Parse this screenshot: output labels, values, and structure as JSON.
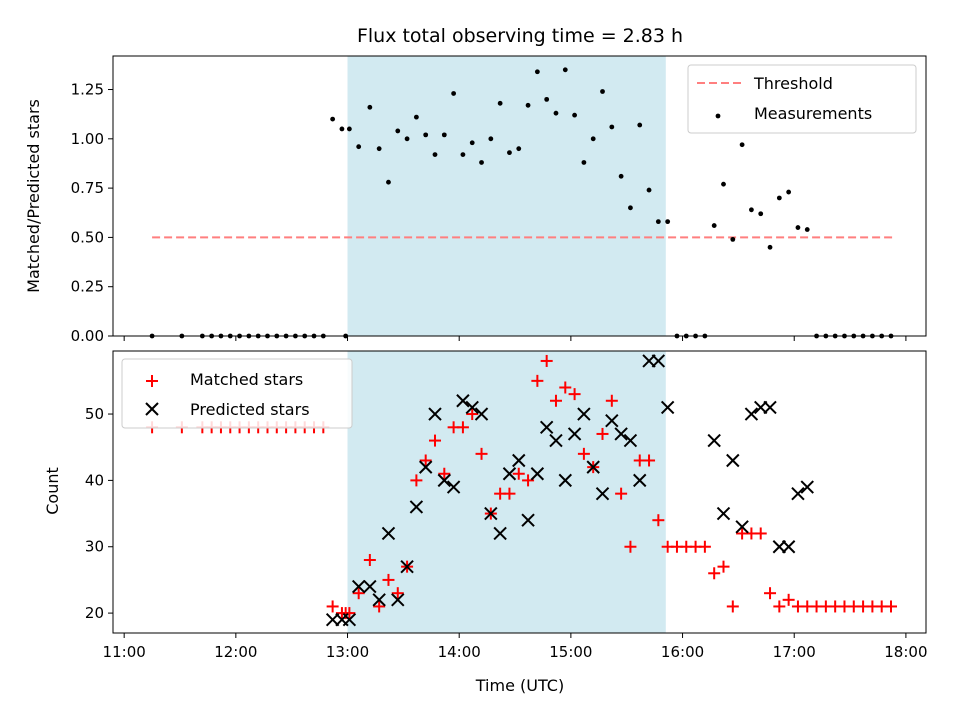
{
  "chart_data": [
    {
      "type": "scatter",
      "title": "Flux total observing time = 2.83 h",
      "xlabel": "",
      "ylabel": "Matched/Predicted stars",
      "ylim": [
        0,
        1.42
      ],
      "yticks": [
        "0.00",
        "0.25",
        "0.50",
        "0.75",
        "1.00",
        "1.25"
      ],
      "shaded_span": {
        "from": "13:00",
        "to": "15:51",
        "color": "#add8e6"
      },
      "legend": {
        "position": "top-right",
        "entries": [
          "Threshold",
          "Measurements"
        ]
      },
      "series": [
        {
          "name": "Threshold",
          "kind": "dashed-line",
          "color": "#ff7f7f",
          "points": [
            [
              "11:15",
              0.5
            ],
            [
              "17:53",
              0.5
            ]
          ]
        },
        {
          "name": "Measurements",
          "kind": "dot",
          "color": "#000000",
          "points": [
            [
              "11:15",
              0.0
            ],
            [
              "11:31",
              0.0
            ],
            [
              "11:42",
              0.0
            ],
            [
              "11:47",
              0.0
            ],
            [
              "11:52",
              0.0
            ],
            [
              "11:57",
              0.0
            ],
            [
              "12:02",
              0.0
            ],
            [
              "12:07",
              0.0
            ],
            [
              "12:12",
              0.0
            ],
            [
              "12:17",
              0.0
            ],
            [
              "12:22",
              0.0
            ],
            [
              "12:27",
              0.0
            ],
            [
              "12:32",
              0.0
            ],
            [
              "12:37",
              0.0
            ],
            [
              "12:42",
              0.0
            ],
            [
              "12:47",
              0.0
            ],
            [
              "12:52",
              1.1
            ],
            [
              "12:57",
              1.05
            ],
            [
              "12:59",
              0.0
            ],
            [
              "13:01",
              1.05
            ],
            [
              "13:06",
              0.96
            ],
            [
              "13:12",
              1.16
            ],
            [
              "13:17",
              0.95
            ],
            [
              "13:22",
              0.78
            ],
            [
              "13:27",
              1.04
            ],
            [
              "13:32",
              1.0
            ],
            [
              "13:37",
              1.11
            ],
            [
              "13:42",
              1.02
            ],
            [
              "13:47",
              0.92
            ],
            [
              "13:52",
              1.02
            ],
            [
              "13:57",
              1.23
            ],
            [
              "14:02",
              0.92
            ],
            [
              "14:07",
              0.98
            ],
            [
              "14:12",
              0.88
            ],
            [
              "14:17",
              1.0
            ],
            [
              "14:22",
              1.18
            ],
            [
              "14:27",
              0.93
            ],
            [
              "14:32",
              0.95
            ],
            [
              "14:37",
              1.17
            ],
            [
              "14:42",
              1.34
            ],
            [
              "14:47",
              1.2
            ],
            [
              "14:52",
              1.13
            ],
            [
              "14:57",
              1.35
            ],
            [
              "15:02",
              1.12
            ],
            [
              "15:07",
              0.88
            ],
            [
              "15:12",
              1.0
            ],
            [
              "15:17",
              1.24
            ],
            [
              "15:22",
              1.06
            ],
            [
              "15:27",
              0.81
            ],
            [
              "15:32",
              0.65
            ],
            [
              "15:37",
              1.07
            ],
            [
              "15:42",
              0.74
            ],
            [
              "15:47",
              0.58
            ],
            [
              "15:52",
              0.58
            ],
            [
              "15:57",
              0.0
            ],
            [
              "16:02",
              0.0
            ],
            [
              "16:07",
              0.0
            ],
            [
              "16:12",
              0.0
            ],
            [
              "16:17",
              0.56
            ],
            [
              "16:22",
              0.77
            ],
            [
              "16:27",
              0.49
            ],
            [
              "16:32",
              0.97
            ],
            [
              "16:37",
              0.64
            ],
            [
              "16:42",
              0.62
            ],
            [
              "16:47",
              0.45
            ],
            [
              "16:52",
              0.7
            ],
            [
              "16:57",
              0.73
            ],
            [
              "17:02",
              0.55
            ],
            [
              "17:07",
              0.54
            ],
            [
              "17:12",
              0.0
            ],
            [
              "17:17",
              0.0
            ],
            [
              "17:22",
              0.0
            ],
            [
              "17:27",
              0.0
            ],
            [
              "17:32",
              0.0
            ],
            [
              "17:37",
              0.0
            ],
            [
              "17:42",
              0.0
            ],
            [
              "17:47",
              0.0
            ],
            [
              "17:52",
              0.0
            ]
          ]
        }
      ]
    },
    {
      "type": "scatter",
      "title": "",
      "xlabel": "Time (UTC)",
      "ylabel": "Count",
      "ylim": [
        17,
        59.5
      ],
      "yticks": [
        "20",
        "30",
        "40",
        "50"
      ],
      "xticks": [
        "11:00",
        "12:00",
        "13:00",
        "14:00",
        "15:00",
        "16:00",
        "17:00",
        "18:00"
      ],
      "shaded_span": {
        "from": "13:00",
        "to": "15:51",
        "color": "#add8e6"
      },
      "legend": {
        "position": "top-left",
        "entries": [
          "Matched stars",
          "Predicted stars"
        ]
      },
      "series": [
        {
          "name": "Matched stars",
          "kind": "plus",
          "color": "#ff0000",
          "points": [
            [
              "11:15",
              48
            ],
            [
              "11:31",
              48
            ],
            [
              "11:42",
              48
            ],
            [
              "11:47",
              48
            ],
            [
              "11:52",
              48
            ],
            [
              "11:57",
              48
            ],
            [
              "12:02",
              48
            ],
            [
              "12:07",
              48
            ],
            [
              "12:12",
              48
            ],
            [
              "12:17",
              48
            ],
            [
              "12:22",
              48
            ],
            [
              "12:27",
              48
            ],
            [
              "12:32",
              48
            ],
            [
              "12:37",
              48
            ],
            [
              "12:42",
              48
            ],
            [
              "12:47",
              48
            ],
            [
              "12:52",
              21
            ],
            [
              "12:57",
              20
            ],
            [
              "12:59",
              20
            ],
            [
              "13:01",
              20
            ],
            [
              "13:06",
              23
            ],
            [
              "13:12",
              28
            ],
            [
              "13:17",
              21
            ],
            [
              "13:22",
              25
            ],
            [
              "13:27",
              23
            ],
            [
              "13:32",
              27
            ],
            [
              "13:37",
              40
            ],
            [
              "13:42",
              43
            ],
            [
              "13:47",
              46
            ],
            [
              "13:52",
              41
            ],
            [
              "13:57",
              48
            ],
            [
              "14:02",
              48
            ],
            [
              "14:07",
              50
            ],
            [
              "14:12",
              44
            ],
            [
              "14:17",
              35
            ],
            [
              "14:22",
              38
            ],
            [
              "14:27",
              38
            ],
            [
              "14:32",
              41
            ],
            [
              "14:37",
              40
            ],
            [
              "14:42",
              55
            ],
            [
              "14:47",
              58
            ],
            [
              "14:52",
              52
            ],
            [
              "14:57",
              54
            ],
            [
              "15:02",
              53
            ],
            [
              "15:07",
              44
            ],
            [
              "15:12",
              42
            ],
            [
              "15:17",
              47
            ],
            [
              "15:22",
              52
            ],
            [
              "15:27",
              38
            ],
            [
              "15:32",
              30
            ],
            [
              "15:37",
              43
            ],
            [
              "15:42",
              43
            ],
            [
              "15:47",
              34
            ],
            [
              "15:52",
              30
            ],
            [
              "15:57",
              30
            ],
            [
              "16:02",
              30
            ],
            [
              "16:07",
              30
            ],
            [
              "16:12",
              30
            ],
            [
              "16:17",
              26
            ],
            [
              "16:22",
              27
            ],
            [
              "16:27",
              21
            ],
            [
              "16:32",
              32
            ],
            [
              "16:37",
              32
            ],
            [
              "16:42",
              32
            ],
            [
              "16:47",
              23
            ],
            [
              "16:52",
              21
            ],
            [
              "16:57",
              22
            ],
            [
              "17:02",
              21
            ],
            [
              "17:07",
              21
            ],
            [
              "17:12",
              21
            ],
            [
              "17:17",
              21
            ],
            [
              "17:22",
              21
            ],
            [
              "17:27",
              21
            ],
            [
              "17:32",
              21
            ],
            [
              "17:37",
              21
            ],
            [
              "17:42",
              21
            ],
            [
              "17:47",
              21
            ],
            [
              "17:52",
              21
            ]
          ]
        },
        {
          "name": "Predicted stars",
          "kind": "x",
          "color": "#000000",
          "points": [
            [
              "12:52",
              19
            ],
            [
              "12:57",
              19
            ],
            [
              "13:01",
              19
            ],
            [
              "13:06",
              24
            ],
            [
              "13:12",
              24
            ],
            [
              "13:17",
              22
            ],
            [
              "13:22",
              32
            ],
            [
              "13:27",
              22
            ],
            [
              "13:32",
              27
            ],
            [
              "13:37",
              36
            ],
            [
              "13:42",
              42
            ],
            [
              "13:47",
              50
            ],
            [
              "13:52",
              40
            ],
            [
              "13:57",
              39
            ],
            [
              "14:02",
              52
            ],
            [
              "14:07",
              51
            ],
            [
              "14:12",
              50
            ],
            [
              "14:17",
              35
            ],
            [
              "14:22",
              32
            ],
            [
              "14:27",
              41
            ],
            [
              "14:32",
              43
            ],
            [
              "14:37",
              34
            ],
            [
              "14:42",
              41
            ],
            [
              "14:47",
              48
            ],
            [
              "14:52",
              46
            ],
            [
              "14:57",
              40
            ],
            [
              "15:02",
              47
            ],
            [
              "15:07",
              50
            ],
            [
              "15:12",
              42
            ],
            [
              "15:17",
              38
            ],
            [
              "15:22",
              49
            ],
            [
              "15:27",
              47
            ],
            [
              "15:32",
              46
            ],
            [
              "15:37",
              40
            ],
            [
              "15:42",
              58
            ],
            [
              "15:47",
              58
            ],
            [
              "15:52",
              51
            ],
            [
              "16:17",
              46
            ],
            [
              "16:22",
              35
            ],
            [
              "16:27",
              43
            ],
            [
              "16:32",
              33
            ],
            [
              "16:37",
              50
            ],
            [
              "16:42",
              51
            ],
            [
              "16:47",
              51
            ],
            [
              "16:52",
              30
            ],
            [
              "16:57",
              30
            ],
            [
              "17:02",
              38
            ],
            [
              "17:07",
              39
            ]
          ]
        }
      ]
    }
  ]
}
